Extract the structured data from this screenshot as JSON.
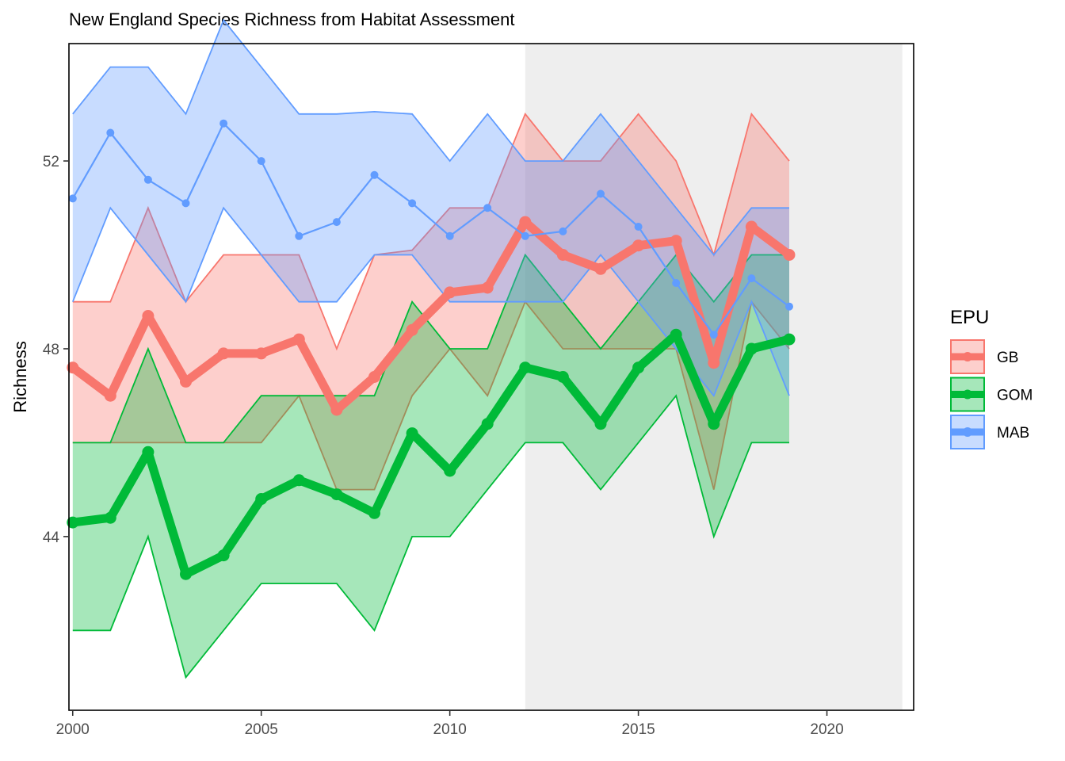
{
  "chart_data": {
    "type": "line",
    "title": "New England Species Richness from Habitat Assessment",
    "xlabel": "",
    "ylabel": "Richness",
    "xlim": [
      1999.9,
      2022.3
    ],
    "ylim": [
      40.3,
      54.5
    ],
    "x_ticks": [
      2000,
      2005,
      2010,
      2015,
      2020
    ],
    "y_ticks": [
      44,
      48,
      52
    ],
    "grid": false,
    "shaded_region": {
      "x_start": 2012.0,
      "x_end": 2022.0,
      "color": "#eeeeee"
    },
    "legend": {
      "title": "EPU",
      "placement": "right"
    },
    "x": [
      2000,
      2001,
      2002,
      2003,
      2004,
      2005,
      2006,
      2007,
      2008,
      2009,
      2010,
      2011,
      2012,
      2013,
      2014,
      2015,
      2016,
      2017,
      2018,
      2019
    ],
    "series": [
      {
        "name": "GB",
        "color": "#f8766d",
        "emphasis": "thick",
        "values": [
          47.6,
          47.0,
          48.7,
          47.3,
          47.9,
          47.9,
          48.2,
          46.7,
          47.4,
          48.4,
          49.2,
          49.3,
          50.7,
          50.0,
          49.7,
          50.2,
          50.3,
          47.7,
          50.6,
          50.0
        ],
        "lower": [
          46,
          46,
          46,
          46,
          46,
          46,
          47,
          45,
          45,
          47,
          48,
          47,
          49,
          48,
          48,
          48,
          48,
          45,
          49,
          48
        ],
        "upper": [
          49,
          49,
          51,
          49,
          50,
          50,
          50,
          48,
          50,
          50.1,
          51,
          51,
          53,
          52,
          52,
          53,
          52,
          50,
          53,
          52
        ]
      },
      {
        "name": "GOM",
        "color": "#00ba38",
        "emphasis": "thick",
        "values": [
          44.3,
          44.4,
          45.8,
          43.2,
          43.6,
          44.8,
          45.2,
          44.9,
          44.5,
          46.2,
          45.4,
          46.4,
          47.6,
          47.4,
          46.4,
          47.6,
          48.3,
          46.4,
          48.0,
          48.2
        ],
        "lower": [
          42,
          42,
          44,
          41,
          42,
          43,
          43,
          43,
          42,
          44,
          44,
          45,
          46,
          46,
          45,
          46,
          47,
          44,
          46,
          46
        ],
        "upper": [
          46,
          46,
          48,
          46,
          46,
          47,
          47,
          47,
          47,
          49,
          48,
          48,
          50,
          49,
          48,
          49,
          50,
          49,
          50,
          50
        ]
      },
      {
        "name": "MAB",
        "color": "#619cff",
        "emphasis": "thin",
        "values": [
          51.2,
          52.6,
          51.6,
          51.1,
          52.8,
          52.0,
          50.4,
          50.7,
          51.7,
          51.1,
          50.4,
          51.0,
          50.4,
          50.5,
          51.3,
          50.6,
          49.4,
          48.3,
          49.5,
          48.9
        ],
        "lower": [
          49,
          51,
          50,
          49,
          51,
          50,
          49,
          49,
          50,
          50,
          49,
          49,
          49,
          49,
          50,
          49,
          48,
          47,
          49,
          47
        ],
        "upper": [
          53,
          54,
          54,
          53,
          55,
          54,
          53,
          53,
          53.05,
          53,
          52,
          53,
          52,
          52,
          53,
          52,
          51,
          50,
          51,
          51
        ]
      }
    ]
  }
}
